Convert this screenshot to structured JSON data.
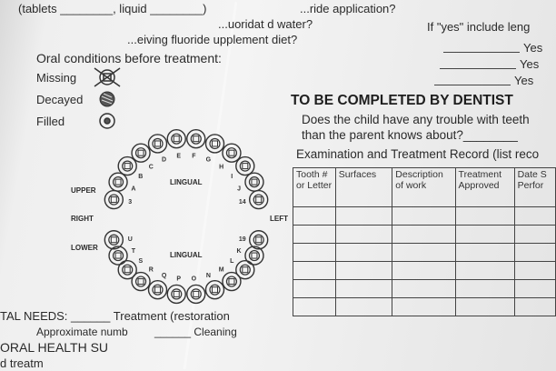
{
  "form": {
    "line_fluoride_application": "...ride application?",
    "line_fluoridated_water": "...uoridat d water?",
    "line_supplement": "...eiving fluoride  upplement diet?",
    "line_tablets": "(tablets ________, liquid ________)",
    "oral_conditions_label": "Oral conditions before treatment:",
    "legend": [
      {
        "label": "Missing",
        "icon": "missing-tooth-icon"
      },
      {
        "label": "Decayed",
        "icon": "decayed-tooth-icon"
      },
      {
        "label": "Filled",
        "icon": "filled-tooth-icon"
      }
    ],
    "if_yes_label": "If \"yes\" include leng",
    "yes_options": [
      "Yes",
      "Yes",
      "Yes"
    ],
    "dentist_section_title": "TO BE COMPLETED BY DENTIST",
    "trouble_question_1": "Does the child have any trouble with teeth",
    "trouble_question_2": "than the parent knows about?________",
    "exam_record_label": "Examination and Treatment Record (list reco",
    "tooth_chart": {
      "upper_label": "UPPER",
      "lower_label": "LOWER",
      "right_label": "RIGHT",
      "left_label": "LEFT",
      "lingual_upper": "LINGUAL",
      "lingual_lower": "LINGUAL",
      "upper_teeth": [
        "3",
        "A",
        "B",
        "C",
        "D",
        "E",
        "F",
        "G",
        "H",
        "I",
        "J",
        "14"
      ],
      "lower_teeth": [
        "U",
        "T",
        "S",
        "R",
        "Q",
        "P",
        "O",
        "N",
        "M",
        "L",
        "K",
        "19"
      ]
    },
    "table": {
      "headers": [
        "Tooth # or Letter",
        "Surfaces",
        "Description of work",
        "Treatment Approved",
        "Date S Perfor"
      ],
      "empty_rows": 6
    },
    "bottom_dental_needs": "TAL NEEDS: ______ Treatment (restoration",
    "bottom_cleaning": "______ Cleaning",
    "bottom_approximate": "Approximate numb",
    "bottom_oral_health": "ORAL HEALTH SU",
    "bottom_treatment": "d treatm"
  }
}
